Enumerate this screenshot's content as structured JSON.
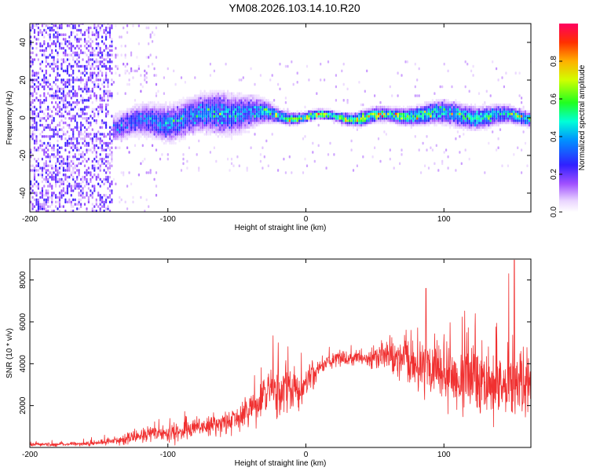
{
  "title": "YM08.2026.103.14.10.R20",
  "colors": {
    "snr_line": "#f03030",
    "axis": "#000000",
    "background": "#ffffff"
  },
  "chart_data": [
    {
      "type": "heatmap",
      "name": "spectrogram",
      "title": "",
      "xlabel": "Height of straight line (km)",
      "ylabel": "Frequency (Hz)",
      "xlim": [
        -200,
        163
      ],
      "ylim": [
        -50,
        50
      ],
      "xticks": [
        -200,
        -100,
        0,
        100
      ],
      "yticks": [
        -40,
        -20,
        0,
        20,
        40
      ],
      "colorbar": {
        "label": "Normalized spectral amplitude",
        "range": [
          0.0,
          1.0
        ],
        "ticks": [
          0.0,
          0.2,
          0.4,
          0.6,
          0.8
        ],
        "colormap": "rainbow (white-violet-blue-cyan-green-yellow-red)"
      },
      "band_profile": {
        "description": "Energy concentrated near 0 Hz; broad scatter for heights below -140 km, band spreading to about +/-10 Hz between -140 and -30 km, tight high-amplitude band around 0 Hz above 0 km",
        "x": [
          -140,
          -120,
          -100,
          -80,
          -60,
          -40,
          -20,
          0,
          20,
          40,
          60,
          80,
          100,
          120,
          140,
          160
        ],
        "center_hz": [
          -5,
          -3,
          -2,
          0,
          3,
          2,
          1,
          0,
          0,
          0,
          0,
          2,
          1,
          1,
          0,
          0
        ],
        "half_width_hz": [
          6,
          7,
          8,
          8,
          9,
          7,
          3,
          2,
          2,
          3,
          3,
          4,
          5,
          5,
          4,
          3
        ],
        "peak_amplitude": [
          0.25,
          0.3,
          0.35,
          0.35,
          0.4,
          0.35,
          0.45,
          0.8,
          0.55,
          0.75,
          0.6,
          0.55,
          0.45,
          0.5,
          0.45,
          0.55
        ]
      }
    },
    {
      "type": "line",
      "name": "snr",
      "title": "",
      "xlabel": "Height of straight line (km)",
      "ylabel": "SNR (10 * v/v)",
      "xlim": [
        -200,
        163
      ],
      "ylim": [
        0,
        9000
      ],
      "xticks": [
        -200,
        -100,
        0,
        100
      ],
      "yticks": [
        2000,
        4000,
        6000,
        8000
      ],
      "series": [
        {
          "name": "SNR",
          "x": [
            -200,
            -180,
            -160,
            -140,
            -120,
            -100,
            -80,
            -60,
            -45,
            -35,
            -25,
            -15,
            -5,
            5,
            15,
            25,
            35,
            45,
            55,
            65,
            75,
            85,
            95,
            105,
            115,
            125,
            135,
            145,
            155,
            163
          ],
          "mean": [
            150,
            150,
            180,
            300,
            550,
            700,
            900,
            1150,
            1500,
            2000,
            2700,
            2800,
            2600,
            3400,
            4100,
            4250,
            4300,
            4200,
            4400,
            4100,
            3900,
            3800,
            3700,
            3500,
            3300,
            3300,
            3200,
            3000,
            3100,
            3100
          ],
          "amplitude": [
            80,
            80,
            100,
            150,
            300,
            400,
            450,
            500,
            700,
            900,
            1200,
            1200,
            800,
            600,
            300,
            300,
            350,
            400,
            600,
            800,
            1000,
            1300,
            1500,
            1500,
            1400,
            1500,
            1600,
            1700,
            1600,
            1400
          ],
          "peaks": [
            {
              "x": -20,
              "y": 5000
            },
            {
              "x": 87,
              "y": 7600
            },
            {
              "x": 147,
              "y": 8300
            },
            {
              "x": 151,
              "y": 8950
            }
          ]
        }
      ]
    }
  ]
}
